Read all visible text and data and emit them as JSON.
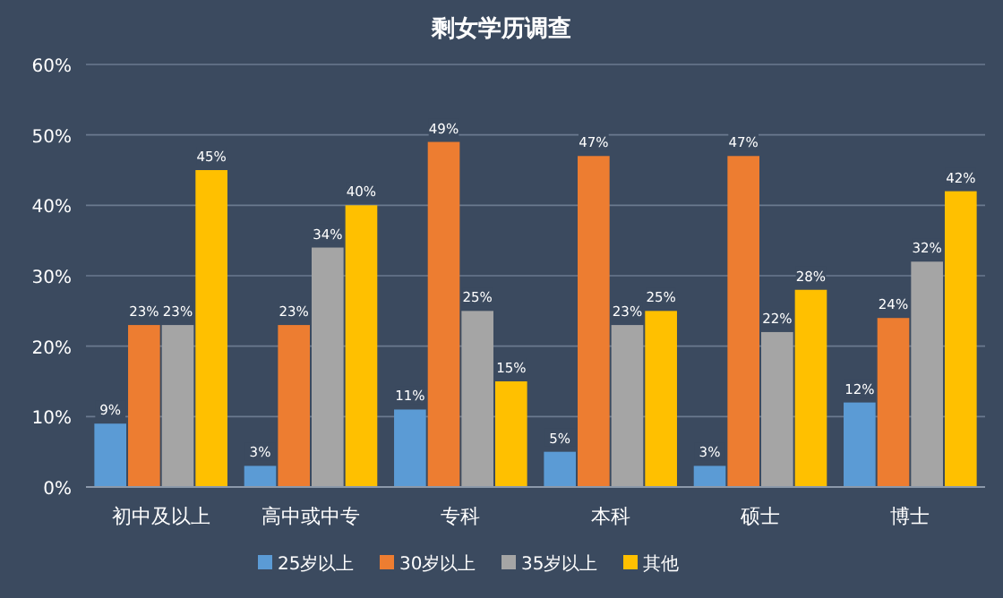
{
  "chart_data": {
    "type": "bar",
    "title": "剩女学历调查",
    "categories": [
      "初中及以上",
      "高中或中专",
      "专科",
      "本科",
      "硕士",
      "博士"
    ],
    "series": [
      {
        "name": "25岁以上",
        "color": "#5b9bd5",
        "values": [
          9,
          3,
          11,
          5,
          3,
          12
        ],
        "value_labels": [
          "9%",
          "3%",
          "11%",
          "5%",
          "3%",
          "12%"
        ]
      },
      {
        "name": "30岁以上",
        "color": "#ed7d31",
        "values": [
          23,
          23,
          49,
          47,
          47,
          24
        ],
        "value_labels": [
          "23%",
          "23%",
          "49%",
          "47%",
          "47%",
          "24%"
        ]
      },
      {
        "name": "35岁以上",
        "color": "#a5a5a5",
        "values": [
          23,
          34,
          25,
          23,
          22,
          32
        ],
        "value_labels": [
          "23%",
          "34%",
          "25%",
          "23%",
          "22%",
          "32%"
        ]
      },
      {
        "name": "其他",
        "color": "#ffc000",
        "values": [
          45,
          40,
          15,
          25,
          28,
          42
        ],
        "value_labels": [
          "45%",
          "40%",
          "15%",
          "25%",
          "28%",
          "42%"
        ]
      }
    ],
    "ylim": [
      0,
      60
    ],
    "yticks": [
      {
        "value": 0,
        "label": "0%"
      },
      {
        "value": 10,
        "label": "10%"
      },
      {
        "value": 20,
        "label": "20%"
      },
      {
        "value": 30,
        "label": "30%"
      },
      {
        "value": 40,
        "label": "40%"
      },
      {
        "value": 50,
        "label": "50%"
      },
      {
        "value": 60,
        "label": "60%"
      }
    ],
    "grid": "y",
    "legend": "bottom"
  }
}
